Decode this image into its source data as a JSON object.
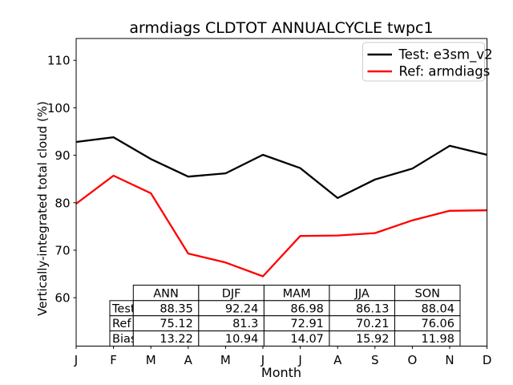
{
  "chart_data": {
    "type": "line",
    "title": "armdiags CLDTOT ANNUALCYCLE twpc1",
    "xlabel": "Month",
    "ylabel": "Vertically-integrated total cloud (%)",
    "x_labels": [
      "J",
      "F",
      "M",
      "A",
      "M",
      "J",
      "J",
      "A",
      "S",
      "O",
      "N",
      "D"
    ],
    "yticks": [
      60,
      70,
      80,
      90,
      100,
      110
    ],
    "ylim": [
      49.8,
      114.6
    ],
    "xlim": [
      1,
      12
    ],
    "grid": false,
    "legend_position": "upper right",
    "series": [
      {
        "name": "Test: e3sm_v2",
        "color": "#000000",
        "values": [
          92.8,
          93.8,
          89.2,
          85.5,
          86.2,
          90.1,
          87.3,
          81.0,
          84.9,
          87.2,
          92.0,
          90.1
        ]
      },
      {
        "name": "Ref: armdiags",
        "color": "#ff0000",
        "values": [
          79.8,
          85.7,
          82.0,
          69.3,
          67.4,
          64.5,
          73.0,
          73.1,
          73.6,
          76.3,
          78.3,
          78.4
        ]
      }
    ]
  },
  "legend": {
    "items": [
      {
        "label": "Test: e3sm_v2",
        "color": "#000000"
      },
      {
        "label": "Ref: armdiags",
        "color": "#ff0000"
      }
    ]
  },
  "table": {
    "col_headers": [
      "ANN",
      "DJF",
      "MAM",
      "JJA",
      "SON"
    ],
    "row_labels": [
      "Test",
      "Ref",
      "Bias"
    ],
    "rows": [
      [
        "88.35",
        "92.24",
        "86.98",
        "86.13",
        "88.04"
      ],
      [
        "75.12",
        "81.3",
        "72.91",
        "70.21",
        "76.06"
      ],
      [
        "13.22",
        "10.94",
        "14.07",
        "15.92",
        "11.98"
      ]
    ]
  },
  "colors": {
    "spine": "#000000",
    "legend_border": "#cccccc",
    "background": "#ffffff"
  }
}
